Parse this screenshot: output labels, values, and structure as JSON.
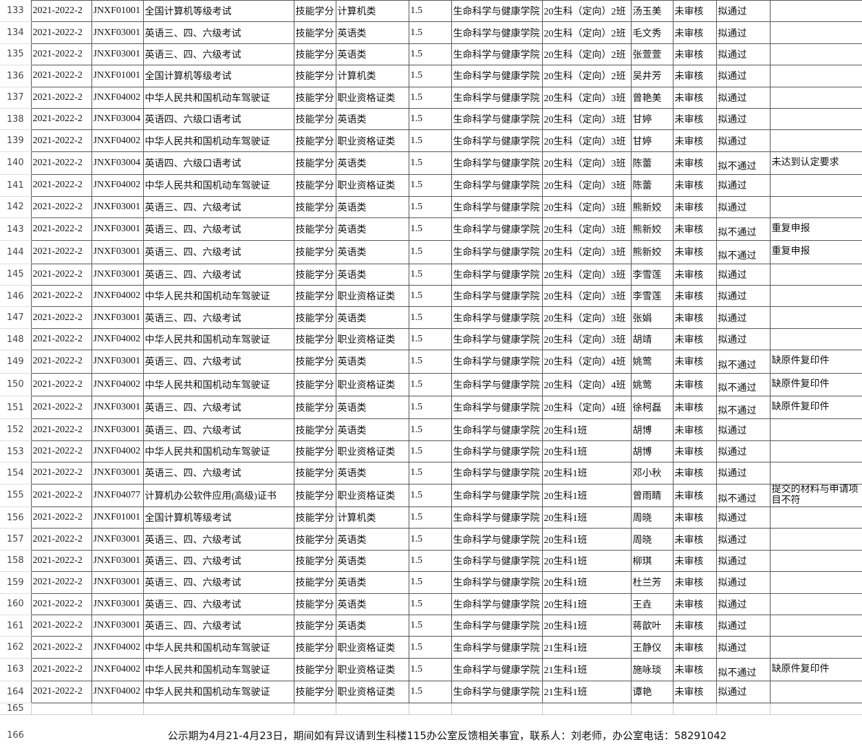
{
  "table": {
    "rows": [
      [
        "133",
        "2021-2022-2",
        "JNXF01001",
        "全国计算机等级考试",
        "技能学分",
        "计算机类",
        "1.5",
        "生命科学与健康学院",
        "20生科（定向）2班",
        "汤玉美",
        "未审核",
        "拟通过"
      ],
      [
        "134",
        "2021-2022-2",
        "JNXF03001",
        "英语三、四、六级考试",
        "技能学分",
        "英语类",
        "1.5",
        "生命科学与健康学院",
        "20生科（定向）2班",
        "毛文秀",
        "未审核",
        "拟通过"
      ],
      [
        "135",
        "2021-2022-2",
        "JNXF03001",
        "英语三、四、六级考试",
        "技能学分",
        "英语类",
        "1.5",
        "生命科学与健康学院",
        "20生科（定向）2班",
        "张萱萱",
        "未审核",
        "拟通过"
      ],
      [
        "136",
        "2021-2022-2",
        "JNXF01001",
        "全国计算机等级考试",
        "技能学分",
        "计算机类",
        "1.5",
        "生命科学与健康学院",
        "20生科（定向）2班",
        "吴井芳",
        "未审核",
        "拟通过"
      ],
      [
        "137",
        "2021-2022-2",
        "JNXF04002",
        "中华人民共和国机动车驾驶证",
        "技能学分",
        "职业资格证类",
        "1.5",
        "生命科学与健康学院",
        "20生科（定向）3班",
        "曾艳美",
        "未审核",
        "拟通过"
      ],
      [
        "138",
        "2021-2022-2",
        "JNXF03004",
        "英语四、六级口语考试",
        "技能学分",
        "英语类",
        "1.5",
        "生命科学与健康学院",
        "20生科（定向）3班",
        "甘婷",
        "未审核",
        "拟通过"
      ],
      [
        "139",
        "2021-2022-2",
        "JNXF04002",
        "中华人民共和国机动车驾驶证",
        "技能学分",
        "职业资格证类",
        "1.5",
        "生命科学与健康学院",
        "20生科（定向）3班",
        "甘婷",
        "未审核",
        "拟通过"
      ],
      [
        "140",
        "2021-2022-2",
        "JNXF03004",
        "英语四、六级口语考试",
        "技能学分",
        "英语类",
        "1.5",
        "生命科学与健康学院",
        "20生科（定向）3班",
        "陈蕾",
        "未审核",
        "拟不通过",
        "未达到认定要求"
      ],
      [
        "141",
        "2021-2022-2",
        "JNXF04002",
        "中华人民共和国机动车驾驶证",
        "技能学分",
        "职业资格证类",
        "1.5",
        "生命科学与健康学院",
        "20生科（定向）3班",
        "陈蕾",
        "未审核",
        "拟通过"
      ],
      [
        "142",
        "2021-2022-2",
        "JNXF03001",
        "英语三、四、六级考试",
        "技能学分",
        "英语类",
        "1.5",
        "生命科学与健康学院",
        "20生科（定向）3班",
        "熊新姣",
        "未审核",
        "拟通过"
      ],
      [
        "143",
        "2021-2022-2",
        "JNXF03001",
        "英语三、四、六级考试",
        "技能学分",
        "英语类",
        "1.5",
        "生命科学与健康学院",
        "20生科（定向）3班",
        "熊新姣",
        "未审核",
        "拟不通过",
        "重复申报"
      ],
      [
        "144",
        "2021-2022-2",
        "JNXF03001",
        "英语三、四、六级考试",
        "技能学分",
        "英语类",
        "1.5",
        "生命科学与健康学院",
        "20生科（定向）3班",
        "熊新姣",
        "未审核",
        "拟不通过",
        "重复申报"
      ],
      [
        "145",
        "2021-2022-2",
        "JNXF03001",
        "英语三、四、六级考试",
        "技能学分",
        "英语类",
        "1.5",
        "生命科学与健康学院",
        "20生科（定向）3班",
        "李雪莲",
        "未审核",
        "拟通过"
      ],
      [
        "146",
        "2021-2022-2",
        "JNXF04002",
        "中华人民共和国机动车驾驶证",
        "技能学分",
        "职业资格证类",
        "1.5",
        "生命科学与健康学院",
        "20生科（定向）3班",
        "李雪莲",
        "未审核",
        "拟通过"
      ],
      [
        "147",
        "2021-2022-2",
        "JNXF03001",
        "英语三、四、六级考试",
        "技能学分",
        "英语类",
        "1.5",
        "生命科学与健康学院",
        "20生科（定向）3班",
        "张娟",
        "未审核",
        "拟通过"
      ],
      [
        "148",
        "2021-2022-2",
        "JNXF04002",
        "中华人民共和国机动车驾驶证",
        "技能学分",
        "职业资格证类",
        "1.5",
        "生命科学与健康学院",
        "20生科（定向）3班",
        "胡靖",
        "未审核",
        "拟通过"
      ],
      [
        "149",
        "2021-2022-2",
        "JNXF03001",
        "英语三、四、六级考试",
        "技能学分",
        "英语类",
        "1.5",
        "生命科学与健康学院",
        "20生科（定向）4班",
        "姚莺",
        "未审核",
        "拟不通过",
        "缺原件复印件"
      ],
      [
        "150",
        "2021-2022-2",
        "JNXF04002",
        "中华人民共和国机动车驾驶证",
        "技能学分",
        "职业资格证类",
        "1.5",
        "生命科学与健康学院",
        "20生科（定向）4班",
        "姚莺",
        "未审核",
        "拟不通过",
        "缺原件复印件"
      ],
      [
        "151",
        "2021-2022-2",
        "JNXF03001",
        "英语三、四、六级考试",
        "技能学分",
        "英语类",
        "1.5",
        "生命科学与健康学院",
        "20生科（定向）4班",
        "徐柯磊",
        "未审核",
        "拟不通过",
        "缺原件复印件"
      ],
      [
        "152",
        "2021-2022-2",
        "JNXF03001",
        "英语三、四、六级考试",
        "技能学分",
        "英语类",
        "1.5",
        "生命科学与健康学院",
        "20生科1班",
        "胡博",
        "未审核",
        "拟通过"
      ],
      [
        "153",
        "2021-2022-2",
        "JNXF04002",
        "中华人民共和国机动车驾驶证",
        "技能学分",
        "职业资格证类",
        "1.5",
        "生命科学与健康学院",
        "20生科1班",
        "胡博",
        "未审核",
        "拟通过"
      ],
      [
        "154",
        "2021-2022-2",
        "JNXF03001",
        "英语三、四、六级考试",
        "技能学分",
        "英语类",
        "1.5",
        "生命科学与健康学院",
        "20生科1班",
        "邓小秋",
        "未审核",
        "拟通过"
      ],
      [
        "155",
        "2021-2022-2",
        "JNXF04077",
        "计算机办公软件应用(高级)证书",
        "技能学分",
        "职业资格证类",
        "1.5",
        "生命科学与健康学院",
        "20生科1班",
        "曾雨睛",
        "未审核",
        "拟不通过",
        "提交的材料与申请项目不符"
      ],
      [
        "156",
        "2021-2022-2",
        "JNXF01001",
        "全国计算机等级考试",
        "技能学分",
        "计算机类",
        "1.5",
        "生命科学与健康学院",
        "20生科1班",
        "周晓",
        "未审核",
        "拟通过"
      ],
      [
        "157",
        "2021-2022-2",
        "JNXF03001",
        "英语三、四、六级考试",
        "技能学分",
        "英语类",
        "1.5",
        "生命科学与健康学院",
        "20生科1班",
        "周晓",
        "未审核",
        "拟通过"
      ],
      [
        "158",
        "2021-2022-2",
        "JNXF03001",
        "英语三、四、六级考试",
        "技能学分",
        "英语类",
        "1.5",
        "生命科学与健康学院",
        "20生科1班",
        "柳琪",
        "未审核",
        "拟通过"
      ],
      [
        "159",
        "2021-2022-2",
        "JNXF03001",
        "英语三、四、六级考试",
        "技能学分",
        "英语类",
        "1.5",
        "生命科学与健康学院",
        "20生科1班",
        "杜兰芳",
        "未审核",
        "拟通过"
      ],
      [
        "160",
        "2021-2022-2",
        "JNXF03001",
        "英语三、四、六级考试",
        "技能学分",
        "英语类",
        "1.5",
        "生命科学与健康学院",
        "20生科1班",
        "王垚",
        "未审核",
        "拟通过"
      ],
      [
        "161",
        "2021-2022-2",
        "JNXF03001",
        "英语三、四、六级考试",
        "技能学分",
        "英语类",
        "1.5",
        "生命科学与健康学院",
        "20生科1班",
        "蒋歆叶",
        "未审核",
        "拟通过"
      ],
      [
        "162",
        "2021-2022-2",
        "JNXF04002",
        "中华人民共和国机动车驾驶证",
        "技能学分",
        "职业资格证类",
        "1.5",
        "生命科学与健康学院",
        "21生科1班",
        "王静仪",
        "未审核",
        "拟通过"
      ],
      [
        "163",
        "2021-2022-2",
        "JNXF04002",
        "中华人民共和国机动车驾驶证",
        "技能学分",
        "职业资格证类",
        "1.5",
        "生命科学与健康学院",
        "21生科1班",
        "施咏琰",
        "未审核",
        "拟不通过",
        "缺原件复印件"
      ],
      [
        "164",
        "2021-2022-2",
        "JNXF04002",
        "中华人民共和国机动车驾驶证",
        "技能学分",
        "职业资格证类",
        "1.5",
        "生命科学与健康学院",
        "21生科1班",
        "谭艳",
        "未审核",
        "拟通过"
      ]
    ],
    "blank_row": "165",
    "footer": {
      "row": "166",
      "text": "公示期为4月21-4月23日，期间如有异议请到生科楼115办公室反馈相关事宜，联系人：刘老师，办公室电话：58291042"
    }
  }
}
